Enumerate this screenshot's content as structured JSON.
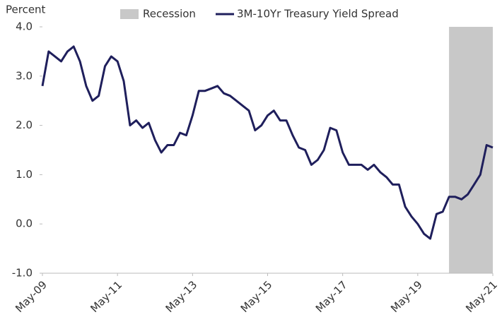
{
  "chart_data": {
    "type": "line",
    "y_axis_label": "Percent",
    "x": [
      "May-09",
      "Jul-09",
      "Sep-09",
      "Nov-09",
      "Jan-10",
      "Mar-10",
      "May-10",
      "Jul-10",
      "Sep-10",
      "Nov-10",
      "Jan-11",
      "Mar-11",
      "May-11",
      "Jul-11",
      "Sep-11",
      "Nov-11",
      "Jan-12",
      "Mar-12",
      "May-12",
      "Jul-12",
      "Sep-12",
      "Nov-12",
      "Jan-13",
      "Mar-13",
      "May-13",
      "Jul-13",
      "Sep-13",
      "Nov-13",
      "Jan-14",
      "Mar-14",
      "May-14",
      "Jul-14",
      "Sep-14",
      "Nov-14",
      "Jan-15",
      "Mar-15",
      "May-15",
      "Jul-15",
      "Sep-15",
      "Nov-15",
      "Jan-16",
      "Mar-16",
      "May-16",
      "Jul-16",
      "Sep-16",
      "Nov-16",
      "Jan-17",
      "Mar-17",
      "May-17",
      "Jul-17",
      "Sep-17",
      "Nov-17",
      "Jan-18",
      "Mar-18",
      "May-18",
      "Jul-18",
      "Sep-18",
      "Nov-18",
      "Jan-19",
      "Mar-19",
      "May-19",
      "Jul-19",
      "Sep-19",
      "Nov-19",
      "Jan-20",
      "Mar-20",
      "May-20",
      "Jul-20",
      "Sep-20",
      "Nov-20",
      "Jan-21",
      "Mar-21",
      "May-21"
    ],
    "series": [
      {
        "name": "3M-10Yr Treasury Yield Spread",
        "color": "#1f1f5c",
        "values": [
          2.8,
          3.5,
          3.4,
          3.3,
          3.5,
          3.6,
          3.3,
          2.8,
          2.5,
          2.6,
          3.2,
          3.4,
          3.3,
          2.9,
          2.0,
          2.1,
          1.95,
          2.05,
          1.7,
          1.45,
          1.6,
          1.6,
          1.85,
          1.8,
          2.2,
          2.7,
          2.7,
          2.75,
          2.8,
          2.65,
          2.6,
          2.5,
          2.4,
          2.3,
          1.9,
          2.0,
          2.2,
          2.3,
          2.1,
          2.1,
          1.8,
          1.55,
          1.5,
          1.2,
          1.3,
          1.5,
          1.95,
          1.9,
          1.45,
          1.2,
          1.2,
          1.2,
          1.1,
          1.2,
          1.05,
          0.95,
          0.8,
          0.8,
          0.35,
          0.15,
          0.0,
          -0.2,
          -0.3,
          0.2,
          0.25,
          0.55,
          0.55,
          0.5,
          0.6,
          0.8,
          1.0,
          1.6,
          1.55
        ]
      }
    ],
    "recession": {
      "name": "Recession",
      "color": "#c8c8c8",
      "start": "Mar-20",
      "end": "May-21"
    },
    "ylim": [
      -1,
      4
    ],
    "yticks": [
      {
        "value": -1,
        "label": "-1.0"
      },
      {
        "value": 0,
        "label": "0.0"
      },
      {
        "value": 1,
        "label": "1.0"
      },
      {
        "value": 2,
        "label": "2.0"
      },
      {
        "value": 3,
        "label": "3.0"
      },
      {
        "value": 4,
        "label": "4.0"
      }
    ],
    "xticks": [
      "May-09",
      "May-11",
      "May-13",
      "May-15",
      "May-17",
      "May-19",
      "May-21"
    ],
    "legend": "top"
  }
}
